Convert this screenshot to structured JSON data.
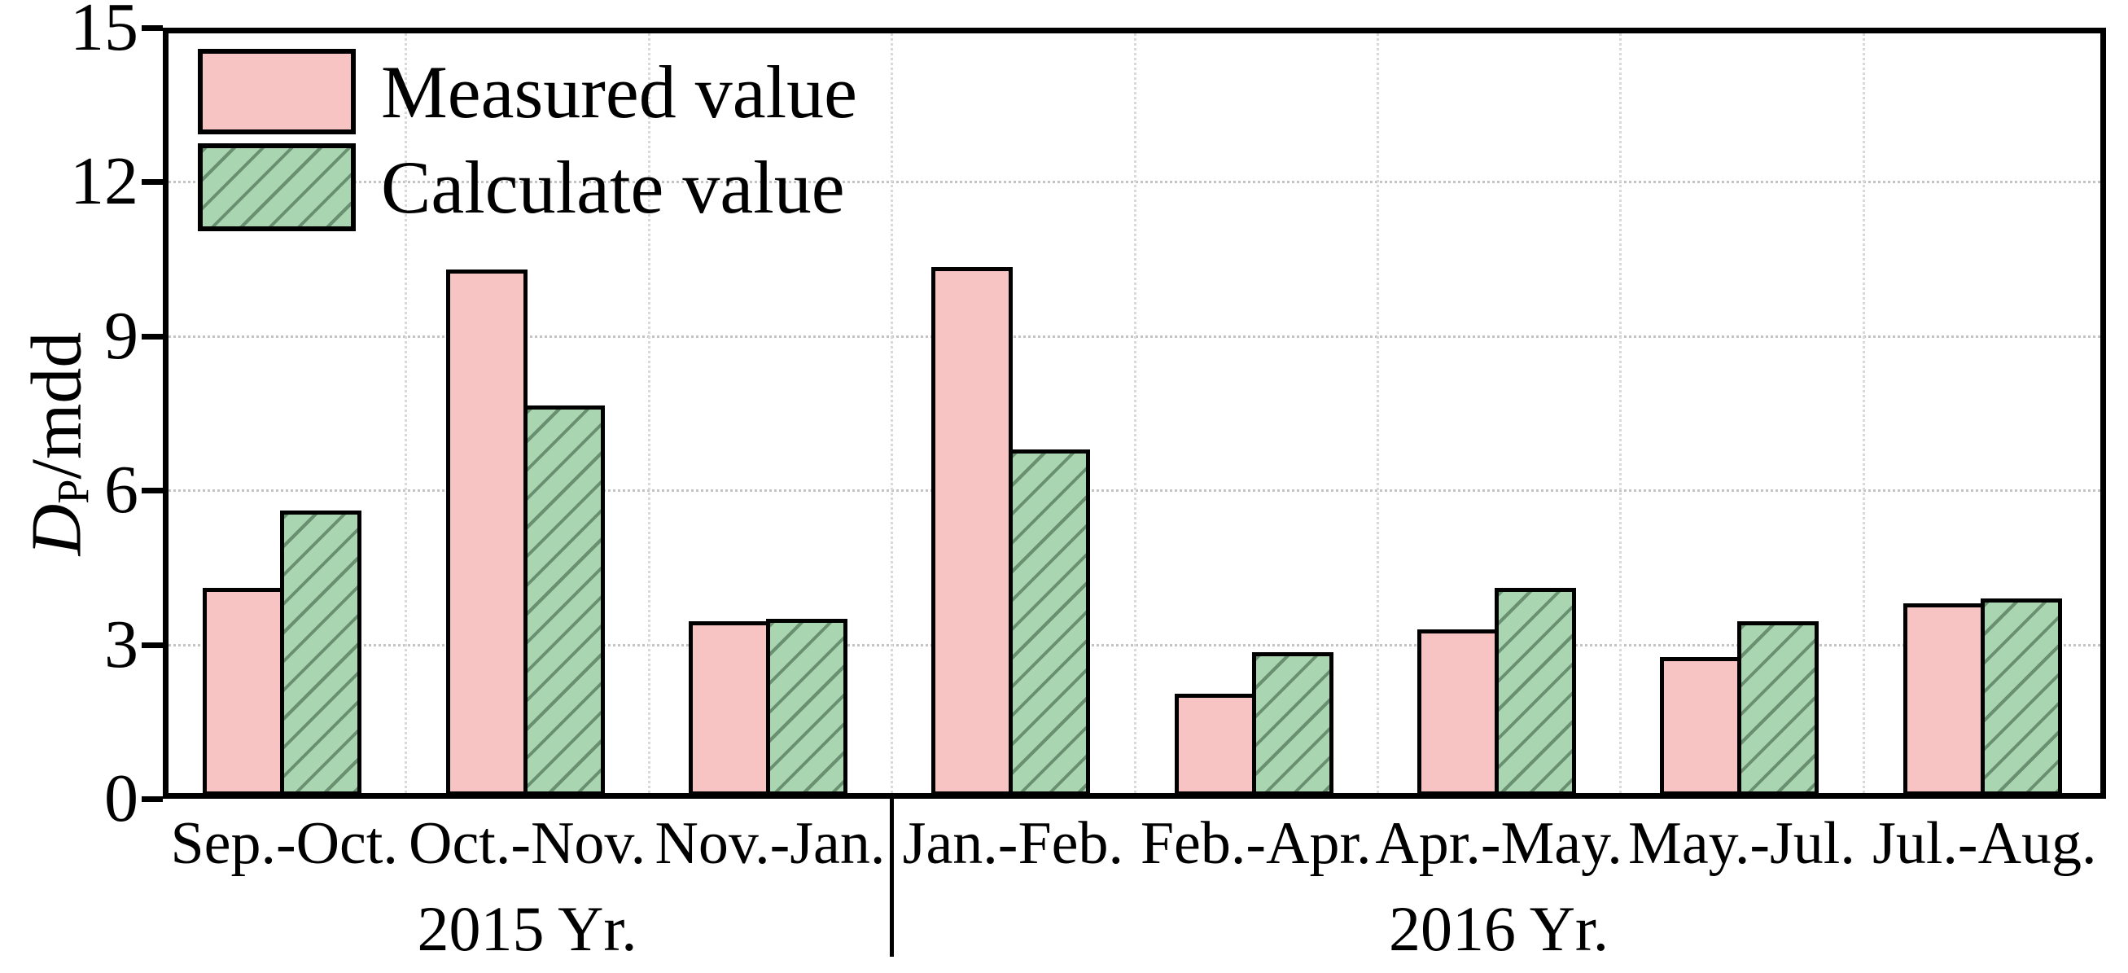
{
  "chart_data": {
    "type": "bar",
    "title": "",
    "ylabel": "D_P/mdd",
    "ylabel_parts": {
      "symbol": "D",
      "subscript": "P",
      "rest": "/mdd"
    },
    "ylim": [
      0,
      15
    ],
    "yticks": [
      0,
      3,
      6,
      9,
      12,
      15
    ],
    "grid": {
      "horizontal_at": [
        3,
        6,
        9,
        12
      ],
      "vertical": "category-boundaries",
      "style": "dotted"
    },
    "legend_position": "top-left-inside",
    "categories": [
      "Sep.-Oct.",
      "Oct.-Nov.",
      "Nov.-Jan.",
      "Jan.-Feb.",
      "Feb.-Apr.",
      "Apr.-May.",
      "May.-Jul.",
      "Jul.-Aug."
    ],
    "series": [
      {
        "name": "Measured value",
        "color": "#f8c3c3",
        "hatch": "none",
        "values": [
          4.1,
          10.3,
          3.45,
          10.35,
          2.05,
          3.3,
          2.75,
          3.8
        ]
      },
      {
        "name": "Calculate value",
        "color": "#a9d6b1",
        "hatch": "diagonal-forward",
        "values": [
          5.6,
          7.65,
          3.5,
          6.8,
          2.85,
          4.1,
          3.45,
          3.9
        ]
      }
    ],
    "group_labels": [
      {
        "label": "2015  Yr.",
        "start": 0,
        "end": 2
      },
      {
        "label": "2016  Yr.",
        "start": 3,
        "end": 7
      }
    ]
  },
  "colors": {
    "measured_fill": "#f8c3c3",
    "calculated_fill": "#a9d6b1",
    "outline": "#000000",
    "gridline": "#c4c4c4"
  }
}
